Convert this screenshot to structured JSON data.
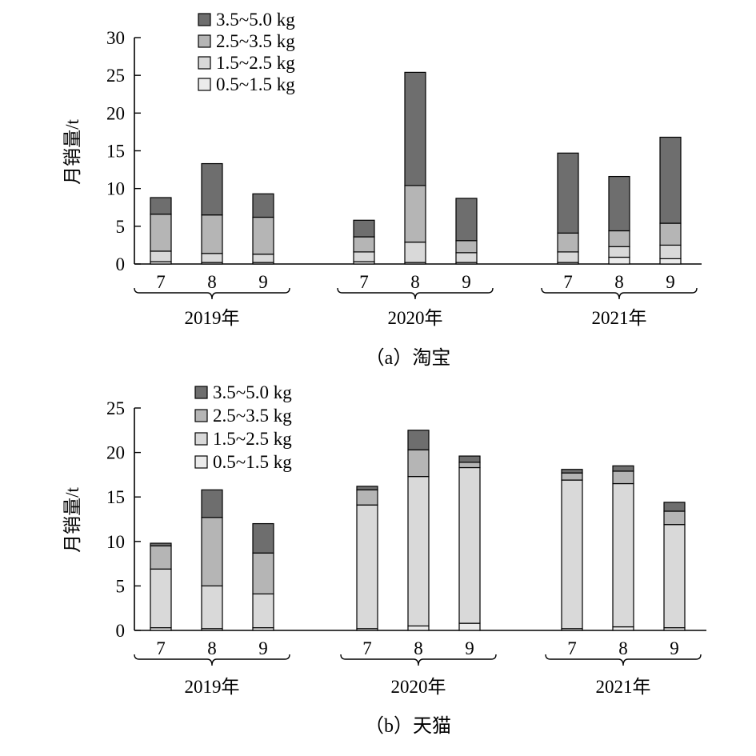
{
  "chart_data": [
    {
      "type": "bar",
      "stacked": true,
      "caption": "（a）淘宝",
      "ylabel": "月销量/t",
      "ylim": [
        0,
        30
      ],
      "yticks": [
        0,
        5,
        10,
        15,
        20,
        25,
        30
      ],
      "legend_position": "top-left",
      "groups": [
        {
          "label": "2019年",
          "categories": [
            "7",
            "8",
            "9"
          ]
        },
        {
          "label": "2020年",
          "categories": [
            "7",
            "8",
            "9"
          ]
        },
        {
          "label": "2021年",
          "categories": [
            "7",
            "8",
            "9"
          ]
        }
      ],
      "series": [
        {
          "name": "0.5~1.5 kg",
          "color": "#ebebeb",
          "values": [
            0.3,
            0.2,
            0.2,
            0.3,
            0.2,
            0.2,
            0.2,
            0.9,
            0.7
          ]
        },
        {
          "name": "1.5~2.5 kg",
          "color": "#d9d9d9",
          "values": [
            1.4,
            1.2,
            1.1,
            1.3,
            2.7,
            1.3,
            1.4,
            1.4,
            1.8
          ]
        },
        {
          "name": "2.5~3.5 kg",
          "color": "#b5b5b5",
          "values": [
            4.9,
            5.1,
            4.9,
            2.0,
            7.5,
            1.6,
            2.5,
            2.1,
            2.9
          ]
        },
        {
          "name": "3.5~5.0 kg",
          "color": "#6e6e6e",
          "values": [
            2.2,
            6.8,
            3.1,
            2.2,
            15.0,
            5.6,
            10.6,
            7.2,
            11.4
          ]
        }
      ]
    },
    {
      "type": "bar",
      "stacked": true,
      "caption": "（b）天猫",
      "ylabel": "月销量/t",
      "ylim": [
        0,
        25
      ],
      "yticks": [
        0,
        5,
        10,
        15,
        20,
        25
      ],
      "legend_position": "top-left",
      "groups": [
        {
          "label": "2019年",
          "categories": [
            "7",
            "8",
            "9"
          ]
        },
        {
          "label": "2020年",
          "categories": [
            "7",
            "8",
            "9"
          ]
        },
        {
          "label": "2021年",
          "categories": [
            "7",
            "8",
            "9"
          ]
        }
      ],
      "series": [
        {
          "name": "0.5~1.5 kg",
          "color": "#ebebeb",
          "values": [
            0.3,
            0.2,
            0.3,
            0.2,
            0.5,
            0.8,
            0.2,
            0.4,
            0.3
          ]
        },
        {
          "name": "1.5~2.5 kg",
          "color": "#d9d9d9",
          "values": [
            6.6,
            4.8,
            3.8,
            13.9,
            16.8,
            17.5,
            16.7,
            16.1,
            11.6
          ]
        },
        {
          "name": "2.5~3.5 kg",
          "color": "#b5b5b5",
          "values": [
            2.6,
            7.7,
            4.6,
            1.7,
            3.0,
            0.6,
            0.8,
            1.4,
            1.5
          ]
        },
        {
          "name": "3.5~5.0 kg",
          "color": "#6e6e6e",
          "values": [
            0.3,
            3.1,
            3.3,
            0.4,
            2.2,
            0.7,
            0.4,
            0.6,
            1.0
          ]
        }
      ]
    }
  ]
}
